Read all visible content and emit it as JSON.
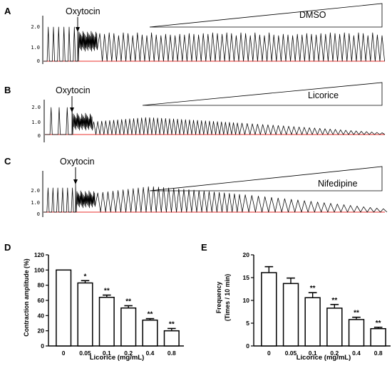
{
  "chart_data": [
    {
      "type": "line",
      "panel": "A",
      "marker": "Oxytocin",
      "treatment": "DMSO",
      "y_ticks": [
        "2.0",
        "1.0",
        "0"
      ],
      "amplitude_trend": "sustained",
      "colors": {
        "trace": "#000000",
        "baseline": "#e8302e"
      }
    },
    {
      "type": "line",
      "panel": "B",
      "marker": "Oxytocin",
      "treatment": "Licorice",
      "y_ticks": [
        "2.0",
        "1.0",
        "0"
      ],
      "amplitude_trend": "progressive decline",
      "colors": {
        "trace": "#000000",
        "baseline": "#e8302e"
      }
    },
    {
      "type": "line",
      "panel": "C",
      "marker": "Oxytocin",
      "treatment": "Nifedipine",
      "y_ticks": [
        "2.0",
        "1.0",
        "0"
      ],
      "amplitude_trend": "progressive decline",
      "colors": {
        "trace": "#000000",
        "baseline": "#e8302e"
      }
    },
    {
      "type": "bar",
      "panel": "D",
      "categories": [
        "0",
        "0.05",
        "0.1",
        "0.2",
        "0.4",
        "0.8"
      ],
      "values": [
        100,
        83,
        64,
        50,
        34,
        20
      ],
      "errors": [
        0,
        3,
        3,
        3,
        2,
        3
      ],
      "significance": [
        "",
        "*",
        "**",
        "**",
        "**",
        "**"
      ],
      "xlabel": "Licorice (mg/mL)",
      "ylabel": "Contraction amplitude (%)",
      "ylim": [
        0,
        120
      ],
      "yticks": [
        0,
        20,
        40,
        60,
        80,
        100,
        120
      ]
    },
    {
      "type": "bar",
      "panel": "E",
      "categories": [
        "0",
        "0.05",
        "0.1",
        "0.2",
        "0.4",
        "0.8"
      ],
      "values": [
        16.1,
        13.7,
        10.6,
        8.3,
        5.8,
        3.8
      ],
      "errors": [
        1.3,
        1.2,
        1.1,
        0.8,
        0.5,
        0.3
      ],
      "significance": [
        "",
        "",
        "**",
        "**",
        "**",
        "**"
      ],
      "xlabel": "Licorice (mg/mL)",
      "ylabel_lines": [
        "Frequency",
        "(Times / 10 min)"
      ],
      "ylim": [
        0,
        20
      ],
      "yticks": [
        0,
        5,
        10,
        15,
        20
      ]
    }
  ]
}
